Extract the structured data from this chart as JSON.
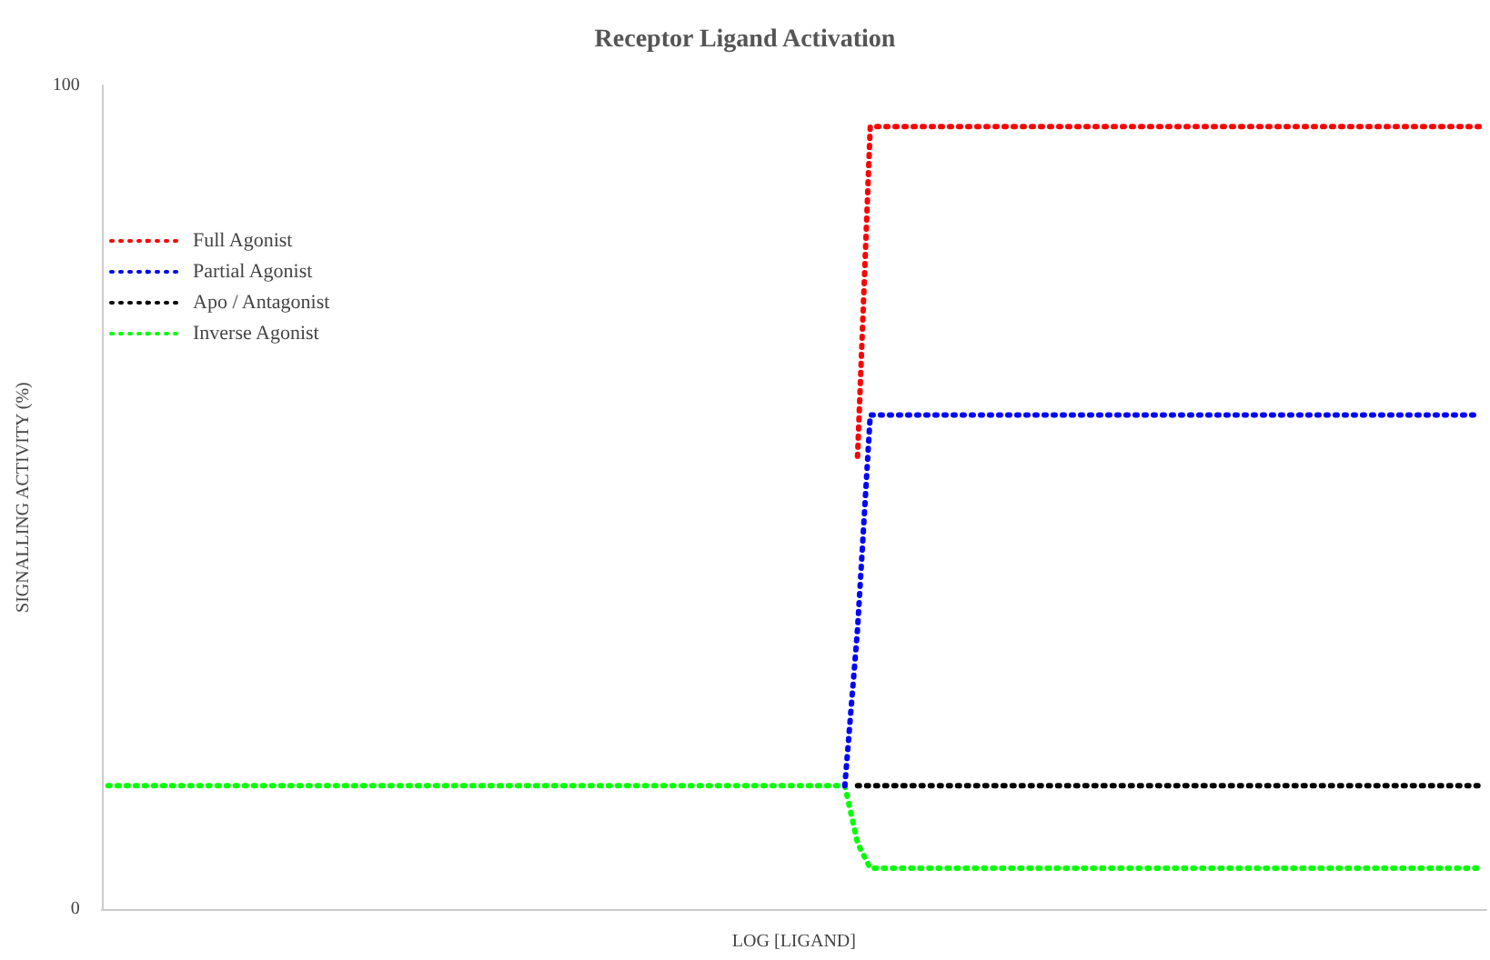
{
  "chart_data": {
    "type": "line",
    "title": "Receptor Ligand Activation",
    "xlabel": "LOG [LIGAND]",
    "ylabel": "SIGNALLING ACTIVITY (%)",
    "categories": [
      null,
      null,
      null,
      null,
      null,
      null,
      null,
      null,
      null,
      null,
      null,
      null,
      null,
      null,
      null,
      null,
      null,
      null,
      null,
      null,
      null,
      null,
      null,
      null,
      null,
      null,
      null,
      null,
      null,
      null,
      null,
      null,
      null,
      null,
      null,
      null,
      null,
      null,
      null,
      null,
      null,
      null,
      null,
      null,
      null,
      null,
      null,
      null,
      null,
      null,
      null,
      null,
      null,
      null,
      null,
      null,
      null,
      null,
      null,
      null,
      null,
      null,
      null,
      null,
      null,
      null,
      null,
      null,
      null,
      null,
      null,
      null,
      null,
      null,
      null,
      null,
      null,
      null,
      null,
      null,
      null,
      null,
      null,
      null,
      null,
      null,
      null,
      null,
      null,
      null,
      null,
      null,
      null,
      null,
      null,
      null,
      null,
      null,
      null,
      null,
      null,
      null,
      null,
      null,
      null,
      null,
      null,
      null,
      null
    ],
    "series": [
      {
        "name": "Full Agonist",
        "color": "#ff0000",
        "values": [
          null,
          null,
          null,
          null,
          null,
          null,
          null,
          null,
          null,
          null,
          null,
          null,
          null,
          null,
          null,
          null,
          null,
          null,
          null,
          null,
          null,
          null,
          null,
          null,
          null,
          null,
          null,
          null,
          null,
          null,
          null,
          null,
          null,
          null,
          null,
          null,
          null,
          null,
          null,
          null,
          null,
          null,
          null,
          null,
          null,
          null,
          null,
          null,
          null,
          null,
          null,
          null,
          null,
          null,
          null,
          null,
          null,
          null,
          null,
          55,
          95,
          95,
          95,
          95,
          95,
          95,
          95,
          95,
          95,
          95,
          95,
          95,
          95,
          95,
          95,
          95,
          95,
          95,
          95,
          95,
          95,
          95,
          95,
          95,
          95,
          95,
          95,
          95,
          95,
          95,
          95,
          95,
          95,
          95,
          95,
          95,
          95,
          95,
          95,
          95,
          95,
          95,
          95,
          95,
          95,
          95,
          95,
          95,
          95
        ]
      },
      {
        "name": "Partial Agonist",
        "color": "#0000ff",
        "values": [
          null,
          null,
          null,
          null,
          null,
          null,
          null,
          null,
          null,
          null,
          null,
          null,
          null,
          null,
          null,
          null,
          null,
          null,
          null,
          null,
          null,
          null,
          null,
          null,
          null,
          null,
          null,
          null,
          null,
          null,
          null,
          null,
          null,
          null,
          null,
          null,
          null,
          null,
          null,
          null,
          null,
          null,
          null,
          null,
          null,
          null,
          null,
          null,
          null,
          null,
          null,
          null,
          null,
          null,
          null,
          null,
          null,
          null,
          15,
          34,
          60,
          60,
          60,
          60,
          60,
          60,
          60,
          60,
          60,
          60,
          60,
          60,
          60,
          60,
          60,
          60,
          60,
          60,
          60,
          60,
          60,
          60,
          60,
          60,
          60,
          60,
          60,
          60,
          60,
          60,
          60,
          60,
          60,
          60,
          60,
          60,
          60,
          60,
          60,
          60,
          60,
          60,
          60,
          60,
          60,
          60,
          60,
          60,
          60
        ]
      },
      {
        "name": "Apo / Antagonist",
        "color": "#000000",
        "values": [
          null,
          null,
          null,
          null,
          null,
          null,
          null,
          null,
          null,
          null,
          null,
          null,
          null,
          null,
          null,
          null,
          null,
          null,
          null,
          null,
          null,
          null,
          null,
          null,
          null,
          null,
          null,
          null,
          null,
          null,
          null,
          null,
          null,
          null,
          null,
          null,
          null,
          null,
          null,
          null,
          null,
          null,
          null,
          null,
          null,
          null,
          null,
          null,
          null,
          null,
          null,
          null,
          null,
          null,
          null,
          null,
          null,
          null,
          null,
          15,
          15,
          15,
          15,
          15,
          15,
          15,
          15,
          15,
          15,
          15,
          15,
          15,
          15,
          15,
          15,
          15,
          15,
          15,
          15,
          15,
          15,
          15,
          15,
          15,
          15,
          15,
          15,
          15,
          15,
          15,
          15,
          15,
          15,
          15,
          15,
          15,
          15,
          15,
          15,
          15,
          15,
          15,
          15,
          15,
          15,
          15,
          15,
          15,
          15
        ]
      },
      {
        "name": "Inverse Agonist",
        "color": "#00ff00",
        "values": [
          15,
          15,
          15,
          15,
          15,
          15,
          15,
          15,
          15,
          15,
          15,
          15,
          15,
          15,
          15,
          15,
          15,
          15,
          15,
          15,
          15,
          15,
          15,
          15,
          15,
          15,
          15,
          15,
          15,
          15,
          15,
          15,
          15,
          15,
          15,
          15,
          15,
          15,
          15,
          15,
          15,
          15,
          15,
          15,
          15,
          15,
          15,
          15,
          15,
          15,
          15,
          15,
          15,
          15,
          15,
          15,
          15,
          15,
          15,
          8,
          5,
          5,
          5,
          5,
          5,
          5,
          5,
          5,
          5,
          5,
          5,
          5,
          5,
          5,
          5,
          5,
          5,
          5,
          5,
          5,
          5,
          5,
          5,
          5,
          5,
          5,
          5,
          5,
          5,
          5,
          5,
          5,
          5,
          5,
          5,
          5,
          5,
          5,
          5,
          5,
          5,
          5,
          5,
          5,
          5,
          5,
          5,
          5,
          5
        ]
      }
    ],
    "ylim": [
      0,
      100
    ],
    "yticks": [
      0,
      100
    ],
    "grid": false,
    "legend": "top left",
    "marker": "none",
    "line_style": "dotted"
  }
}
